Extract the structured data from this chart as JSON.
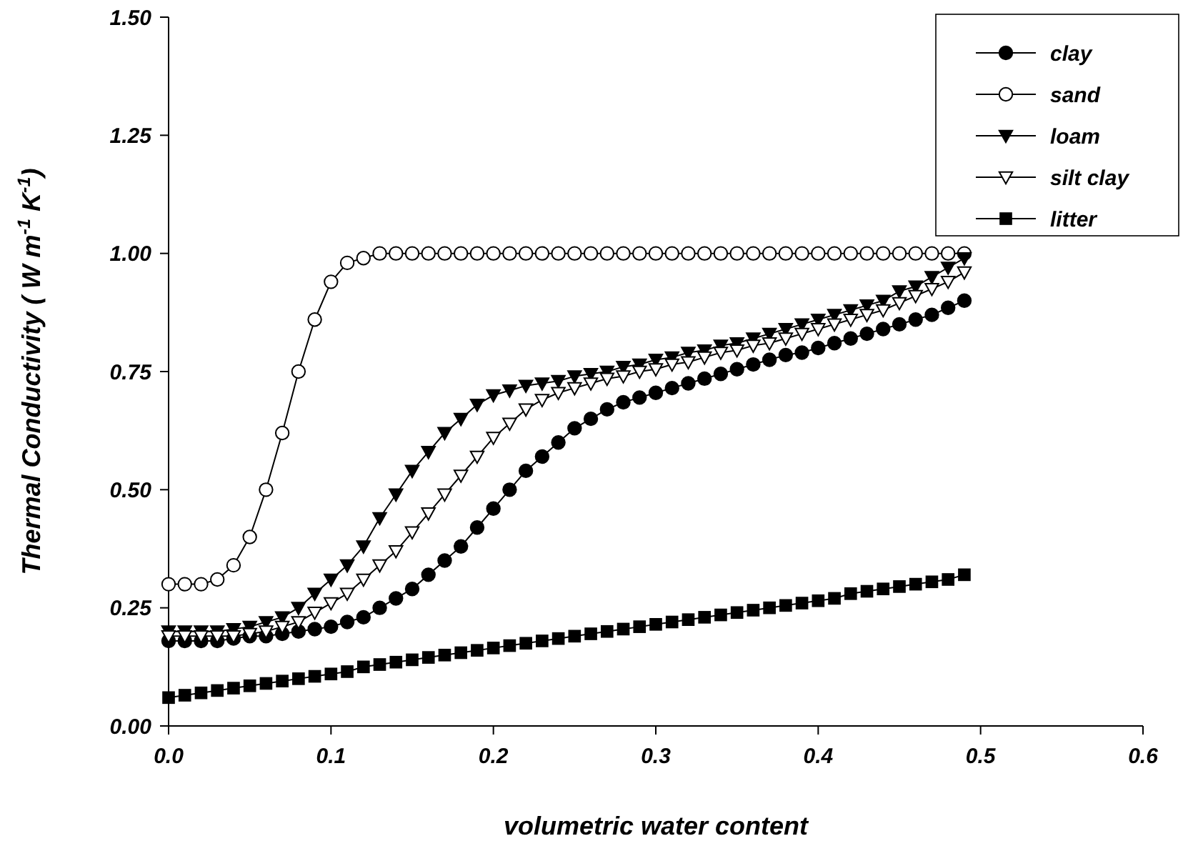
{
  "chart_data": {
    "type": "line",
    "xlabel": "volumetric water content",
    "ylabel": "Thermal Conductivity ( W m$^{-1}$ K$^{-1}$)",
    "x": [
      0,
      0.01,
      0.02,
      0.03,
      0.04,
      0.05,
      0.06,
      0.07,
      0.08,
      0.09,
      0.1,
      0.11,
      0.12,
      0.13,
      0.14,
      0.15,
      0.16,
      0.17,
      0.18,
      0.19,
      0.2,
      0.21,
      0.22,
      0.23,
      0.24,
      0.25,
      0.26,
      0.27,
      0.28,
      0.29,
      0.3,
      0.31,
      0.32,
      0.33,
      0.34,
      0.35,
      0.36,
      0.37,
      0.38,
      0.39,
      0.4,
      0.41,
      0.42,
      0.43,
      0.44,
      0.45,
      0.46,
      0.47,
      0.48,
      0.49
    ],
    "xlim": [
      0,
      0.6
    ],
    "xticks": [
      {
        "value": 0,
        "label": "0.0"
      },
      {
        "value": 0.1,
        "label": "0.1"
      },
      {
        "value": 0.2,
        "label": "0.2"
      },
      {
        "value": 0.3,
        "label": "0.3"
      },
      {
        "value": 0.4,
        "label": "0.4"
      },
      {
        "value": 0.5,
        "label": "0.5"
      },
      {
        "value": 0.6,
        "label": "0.6"
      }
    ],
    "ylim": [
      0,
      1.5
    ],
    "yticks": [
      {
        "value": 0,
        "label": "0.00"
      },
      {
        "value": 0.25,
        "label": "0.25"
      },
      {
        "value": 0.5,
        "label": "0.50"
      },
      {
        "value": 0.75,
        "label": "0.75"
      },
      {
        "value": 1,
        "label": "1.00"
      },
      {
        "value": 1.25,
        "label": "1.25"
      },
      {
        "value": 1.5,
        "label": "1.50"
      }
    ],
    "grid": false,
    "legend": "top right",
    "line_style": "solid",
    "series": [
      {
        "name": "clay",
        "color": "#000000",
        "marker": "circle",
        "values": [
          0.18,
          0.18,
          0.18,
          0.18,
          0.185,
          0.19,
          0.19,
          0.195,
          0.2,
          0.205,
          0.21,
          0.22,
          0.23,
          0.25,
          0.27,
          0.29,
          0.32,
          0.35,
          0.38,
          0.42,
          0.46,
          0.5,
          0.54,
          0.57,
          0.6,
          0.63,
          0.65,
          0.67,
          0.685,
          0.695,
          0.705,
          0.715,
          0.725,
          0.735,
          0.745,
          0.755,
          0.765,
          0.775,
          0.785,
          0.79,
          0.8,
          0.81,
          0.82,
          0.83,
          0.84,
          0.85,
          0.86,
          0.87,
          0.885,
          0.9
        ]
      },
      {
        "name": "sand",
        "color": "#ffffff",
        "marker": "circle",
        "values": [
          0.3,
          0.3,
          0.3,
          0.31,
          0.34,
          0.4,
          0.5,
          0.62,
          0.75,
          0.86,
          0.94,
          0.98,
          0.99,
          1,
          1,
          1,
          1,
          1,
          1,
          1,
          1,
          1,
          1,
          1,
          1,
          1,
          1,
          1,
          1,
          1,
          1,
          1,
          1,
          1,
          1,
          1,
          1,
          1,
          1,
          1,
          1,
          1,
          1,
          1,
          1,
          1,
          1,
          1,
          1,
          1
        ]
      },
      {
        "name": "loam",
        "color": "#000000",
        "marker": "triangle",
        "values": [
          0.2,
          0.2,
          0.2,
          0.2,
          0.205,
          0.21,
          0.22,
          0.23,
          0.25,
          0.28,
          0.31,
          0.34,
          0.38,
          0.44,
          0.49,
          0.54,
          0.58,
          0.62,
          0.65,
          0.68,
          0.7,
          0.71,
          0.72,
          0.725,
          0.73,
          0.74,
          0.745,
          0.75,
          0.76,
          0.765,
          0.775,
          0.78,
          0.79,
          0.795,
          0.805,
          0.81,
          0.82,
          0.83,
          0.84,
          0.85,
          0.86,
          0.87,
          0.88,
          0.89,
          0.9,
          0.92,
          0.93,
          0.95,
          0.97,
          0.99
        ]
      },
      {
        "name": "silt clay",
        "color": "#ffffff",
        "marker": "triangle",
        "values": [
          0.19,
          0.19,
          0.19,
          0.19,
          0.19,
          0.195,
          0.2,
          0.21,
          0.22,
          0.24,
          0.26,
          0.28,
          0.31,
          0.34,
          0.37,
          0.41,
          0.45,
          0.49,
          0.53,
          0.57,
          0.61,
          0.64,
          0.67,
          0.69,
          0.705,
          0.715,
          0.725,
          0.735,
          0.74,
          0.75,
          0.755,
          0.765,
          0.77,
          0.78,
          0.79,
          0.795,
          0.805,
          0.81,
          0.82,
          0.83,
          0.84,
          0.85,
          0.86,
          0.87,
          0.88,
          0.895,
          0.91,
          0.925,
          0.94,
          0.96
        ]
      },
      {
        "name": "litter",
        "color": "#000000",
        "marker": "square",
        "values": [
          0.06,
          0.065,
          0.07,
          0.075,
          0.08,
          0.085,
          0.09,
          0.095,
          0.1,
          0.105,
          0.11,
          0.115,
          0.125,
          0.13,
          0.135,
          0.14,
          0.145,
          0.15,
          0.155,
          0.16,
          0.165,
          0.17,
          0.175,
          0.18,
          0.185,
          0.19,
          0.195,
          0.2,
          0.205,
          0.21,
          0.215,
          0.22,
          0.225,
          0.23,
          0.235,
          0.24,
          0.245,
          0.25,
          0.255,
          0.26,
          0.265,
          0.27,
          0.28,
          0.285,
          0.29,
          0.295,
          0.3,
          0.305,
          0.31,
          0.32
        ]
      }
    ]
  }
}
